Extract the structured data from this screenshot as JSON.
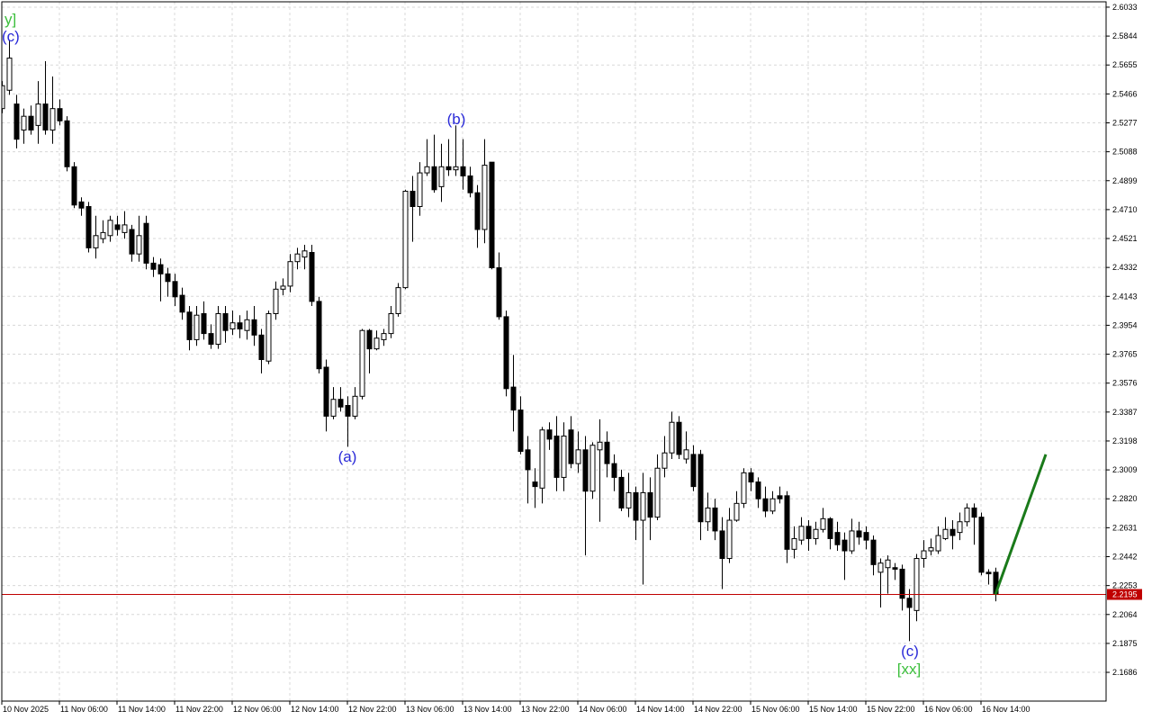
{
  "chart_data": {
    "type": "candlestick",
    "up_color": "#ffffff",
    "down_color": "#000000",
    "open": [
      2.537,
      2.549,
      2.54,
      2.523,
      2.532,
      2.526,
      2.54,
      2.523,
      2.537,
      2.529,
      2.499,
      2.476,
      2.473,
      2.446,
      2.452,
      2.454,
      2.461,
      2.456,
      2.458,
      2.442,
      2.462,
      2.436,
      2.435,
      2.429,
      2.424,
      2.415,
      2.404,
      2.386,
      2.403,
      2.39,
      2.383,
      2.403,
      2.393,
      2.397,
      2.392,
      2.399,
      2.389,
      2.372,
      2.403,
      2.419,
      2.421,
      2.437,
      2.44,
      2.443,
      2.411,
      2.368,
      2.336,
      2.347,
      2.343,
      2.336,
      2.349,
      2.392,
      2.38,
      2.386,
      2.39,
      2.403,
      2.42,
      2.483,
      2.473,
      2.495,
      2.499,
      2.486,
      2.499,
      2.497,
      2.499,
      2.493,
      2.482,
      2.458,
      2.502,
      2.433,
      2.401,
      2.355,
      2.34,
      2.314,
      2.293,
      2.289,
      2.327,
      2.323,
      2.296,
      2.327,
      2.305,
      2.314,
      2.287,
      2.314,
      2.319,
      2.305,
      2.296,
      2.276,
      2.286,
      2.268,
      2.286,
      2.27,
      2.302,
      2.312,
      2.332,
      2.308,
      2.311,
      2.311,
      2.267,
      2.276,
      2.261,
      2.243,
      2.268,
      2.279,
      2.299,
      2.293,
      2.282,
      2.274,
      2.284,
      2.284,
      2.249,
      2.255,
      2.264,
      2.256,
      2.262,
      2.269,
      2.26,
      2.255,
      2.248,
      2.261,
      2.26,
      2.255,
      2.234,
      2.237,
      2.237,
      2.236,
      2.217,
      2.209,
      2.243,
      2.248,
      2.248,
      2.256,
      2.262,
      2.26,
      2.267,
      2.276,
      2.27,
      2.234,
      2.234
    ],
    "high": [
      2.555,
      2.582,
      2.546,
      2.537,
      2.539,
      2.555,
      2.568,
      2.558,
      2.543,
      2.532,
      2.502,
      2.479,
      2.476,
      2.467,
      2.464,
      2.467,
      2.467,
      2.47,
      2.461,
      2.467,
      2.467,
      2.44,
      2.439,
      2.433,
      2.429,
      2.42,
      2.408,
      2.408,
      2.411,
      2.396,
      2.408,
      2.408,
      2.405,
      2.402,
      2.405,
      2.408,
      2.393,
      2.405,
      2.424,
      2.426,
      2.442,
      2.446,
      2.448,
      2.448,
      2.414,
      2.373,
      2.355,
      2.355,
      2.349,
      2.355,
      2.393,
      2.393,
      2.392,
      2.393,
      2.408,
      2.423,
      2.484,
      2.493,
      2.502,
      2.517,
      2.52,
      2.514,
      2.517,
      2.526,
      2.517,
      2.499,
      2.487,
      2.517,
      2.502,
      2.443,
      2.405,
      2.376,
      2.349,
      2.323,
      2.302,
      2.329,
      2.332,
      2.336,
      2.332,
      2.336,
      2.326,
      2.323,
      2.319,
      2.334,
      2.326,
      2.311,
      2.301,
      2.299,
      2.29,
      2.299,
      2.296,
      2.311,
      2.323,
      2.339,
      2.336,
      2.326,
      2.317,
      2.314,
      2.286,
      2.282,
      2.27,
      2.276,
      2.287,
      2.302,
      2.302,
      2.296,
      2.29,
      2.287,
      2.29,
      2.287,
      2.264,
      2.27,
      2.268,
      2.267,
      2.276,
      2.27,
      2.267,
      2.26,
      2.269,
      2.267,
      2.264,
      2.258,
      2.243,
      2.245,
      2.24,
      2.239,
      2.223,
      2.246,
      2.255,
      2.256,
      2.264,
      2.27,
      2.268,
      2.273,
      2.279,
      2.279,
      2.273,
      2.236,
      2.237
    ],
    "low": [
      2.534,
      2.546,
      2.511,
      2.514,
      2.52,
      2.514,
      2.52,
      2.514,
      2.526,
      2.496,
      2.472,
      2.467,
      2.443,
      2.439,
      2.449,
      2.45,
      2.454,
      2.452,
      2.437,
      2.437,
      2.432,
      2.427,
      2.411,
      2.414,
      2.408,
      2.399,
      2.379,
      2.382,
      2.386,
      2.38,
      2.38,
      2.384,
      2.389,
      2.387,
      2.386,
      2.382,
      2.364,
      2.37,
      2.399,
      2.415,
      2.417,
      2.432,
      2.432,
      2.408,
      2.364,
      2.326,
      2.334,
      2.339,
      2.316,
      2.334,
      2.347,
      2.364,
      2.379,
      2.382,
      2.387,
      2.401,
      2.419,
      2.45,
      2.467,
      2.493,
      2.482,
      2.476,
      2.493,
      2.493,
      2.484,
      2.479,
      2.446,
      2.449,
      2.432,
      2.399,
      2.349,
      2.326,
      2.311,
      2.279,
      2.276,
      2.279,
      2.314,
      2.287,
      2.287,
      2.302,
      2.299,
      2.245,
      2.282,
      2.267,
      2.296,
      2.287,
      2.274,
      2.27,
      2.255,
      2.226,
      2.255,
      2.268,
      2.296,
      2.308,
      2.308,
      2.305,
      2.287,
      2.255,
      2.261,
      2.255,
      2.223,
      2.24,
      2.267,
      2.276,
      2.287,
      2.276,
      2.27,
      2.272,
      2.279,
      2.24,
      2.243,
      2.252,
      2.248,
      2.252,
      2.26,
      2.249,
      2.248,
      2.229,
      2.246,
      2.252,
      2.249,
      2.232,
      2.211,
      2.22,
      2.229,
      2.209,
      2.189,
      2.202,
      2.237,
      2.245,
      2.246,
      2.255,
      2.249,
      2.255,
      2.264,
      2.252,
      2.232,
      2.226,
      2.215
    ],
    "close": [
      2.552,
      2.57,
      2.517,
      2.532,
      2.523,
      2.54,
      2.523,
      2.537,
      2.529,
      2.499,
      2.474,
      2.472,
      2.446,
      2.454,
      2.456,
      2.464,
      2.458,
      2.461,
      2.442,
      2.454,
      2.436,
      2.432,
      2.429,
      2.424,
      2.414,
      2.404,
      2.386,
      2.402,
      2.39,
      2.383,
      2.403,
      2.392,
      2.397,
      2.393,
      2.399,
      2.389,
      2.373,
      2.403,
      2.419,
      2.421,
      2.437,
      2.442,
      2.444,
      2.411,
      2.367,
      2.336,
      2.347,
      2.342,
      2.336,
      2.349,
      2.392,
      2.38,
      2.387,
      2.39,
      2.403,
      2.42,
      2.483,
      2.473,
      2.495,
      2.499,
      2.484,
      2.499,
      2.497,
      2.499,
      2.493,
      2.482,
      2.458,
      2.5,
      2.433,
      2.401,
      2.354,
      2.34,
      2.313,
      2.301,
      2.29,
      2.327,
      2.321,
      2.296,
      2.323,
      2.305,
      2.314,
      2.287,
      2.317,
      2.319,
      2.305,
      2.296,
      2.276,
      2.286,
      2.268,
      2.286,
      2.27,
      2.302,
      2.312,
      2.332,
      2.311,
      2.314,
      2.29,
      2.267,
      2.276,
      2.261,
      2.243,
      2.268,
      2.279,
      2.299,
      2.293,
      2.282,
      2.274,
      2.282,
      2.282,
      2.249,
      2.256,
      2.264,
      2.256,
      2.262,
      2.269,
      2.256,
      2.252,
      2.248,
      2.261,
      2.257,
      2.255,
      2.239,
      2.24,
      2.242,
      2.236,
      2.217,
      2.211,
      2.243,
      2.248,
      2.25,
      2.258,
      2.262,
      2.258,
      2.267,
      2.276,
      2.27,
      2.234,
      2.233,
      2.2195
    ],
    "xlim": [
      0,
      153.375
    ],
    "xticks": [
      {
        "value": 0,
        "label": "10 Nov 2025"
      },
      {
        "value": 8,
        "label": "11 Nov 06:00"
      },
      {
        "value": 16,
        "label": "11 Nov 14:00"
      },
      {
        "value": 24,
        "label": "11 Nov 22:00"
      },
      {
        "value": 32,
        "label": "12 Nov 06:00"
      },
      {
        "value": 40,
        "label": "12 Nov 14:00"
      },
      {
        "value": 48,
        "label": "12 Nov 22:00"
      },
      {
        "value": 56,
        "label": "13 Nov 06:00"
      },
      {
        "value": 64,
        "label": "13 Nov 14:00"
      },
      {
        "value": 72,
        "label": "13 Nov 22:00"
      },
      {
        "value": 80,
        "label": "14 Nov 06:00"
      },
      {
        "value": 88,
        "label": "14 Nov 14:00"
      },
      {
        "value": 96,
        "label": "14 Nov 22:00"
      },
      {
        "value": 104,
        "label": "15 Nov 06:00"
      },
      {
        "value": 112,
        "label": "15 Nov 14:00"
      },
      {
        "value": 120,
        "label": "15 Nov 22:00"
      },
      {
        "value": 128,
        "label": "16 Nov 06:00"
      },
      {
        "value": 136,
        "label": "16 Nov 14:00"
      }
    ],
    "ylim": [
      2.1498,
      2.6068
    ],
    "yticks": [
      2.6033,
      2.5844,
      2.5655,
      2.5466,
      2.5277,
      2.5088,
      2.4899,
      {
        "value": 2.471,
        "label": "2.4710"
      },
      2.4521,
      2.4332,
      2.4143,
      2.3954,
      2.3765,
      2.3576,
      2.3387,
      2.3198,
      2.3009,
      {
        "value": 2.282,
        "label": "2.2820"
      },
      2.2631,
      2.2442,
      2.2253,
      2.2064,
      2.1875,
      2.1686
    ],
    "grid": true,
    "current_price": 2.2195,
    "current_price_color": "#c00000",
    "projection": {
      "x": [
        138,
        145
      ],
      "values": [
        2.2195,
        2.311
      ],
      "color": "#1a7a1a"
    },
    "annotations": [
      {
        "text": "y]",
        "color": "#3cbf3c"
      },
      {
        "text": "(c)",
        "color": "#2a2ad8"
      },
      {
        "text": "(b)",
        "color": "#2a2ad8"
      },
      {
        "text": "(a)",
        "color": "#2a2ad8"
      },
      {
        "text": "(c)",
        "color": "#2a2ad8"
      },
      {
        "text": "[xx]",
        "color": "#3cbf3c"
      }
    ]
  }
}
